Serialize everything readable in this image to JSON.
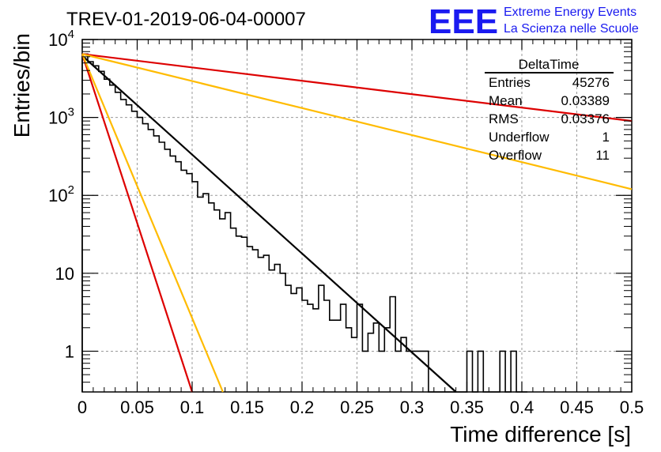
{
  "title": "TREV-01-2019-06-04-00007",
  "brand": {
    "logo_text": "EEE",
    "line1": "Extreme Energy Events",
    "line2": "La Scienza nelle Scuole",
    "color": "#1a1af0"
  },
  "stats_box": {
    "name": "DeltaTime",
    "rows": [
      {
        "label": "Entries",
        "value": "45276"
      },
      {
        "label": "Mean",
        "value": "0.03389"
      },
      {
        "label": "RMS",
        "value": "0.03376"
      },
      {
        "label": "Underflow",
        "value": "1"
      },
      {
        "label": "Overflow",
        "value": "11"
      }
    ]
  },
  "chart_data": {
    "type": "line",
    "xlabel": "Time difference [s]",
    "ylabel": "Entries/bin",
    "xlim": [
      0,
      0.5
    ],
    "ylim": [
      0.3,
      10000
    ],
    "yscale": "log",
    "grid": true,
    "x_ticks": [
      0,
      0.05,
      0.1,
      0.15,
      0.2,
      0.25,
      0.3,
      0.35,
      0.4,
      0.45,
      0.5
    ],
    "x_tick_labels": [
      "0",
      "0.05",
      "0.1",
      "0.15",
      "0.2",
      "0.25",
      "0.3",
      "0.35",
      "0.4",
      "0.45",
      "0.5"
    ],
    "y_ticks": [
      {
        "value": 1,
        "base": "1",
        "exp": ""
      },
      {
        "value": 10,
        "base": "10",
        "exp": ""
      },
      {
        "value": 100,
        "base": "10",
        "exp": "2"
      },
      {
        "value": 1000,
        "base": "10",
        "exp": "3"
      },
      {
        "value": 10000,
        "base": "10",
        "exp": "4"
      }
    ],
    "histogram": {
      "color": "#000000",
      "x": [
        0.0,
        0.005,
        0.01,
        0.015,
        0.02,
        0.025,
        0.03,
        0.035,
        0.04,
        0.045,
        0.05,
        0.055,
        0.06,
        0.065,
        0.07,
        0.075,
        0.08,
        0.085,
        0.09,
        0.095,
        0.1,
        0.105,
        0.11,
        0.115,
        0.12,
        0.125,
        0.13,
        0.135,
        0.14,
        0.145,
        0.15,
        0.155,
        0.16,
        0.165,
        0.17,
        0.175,
        0.18,
        0.185,
        0.19,
        0.195,
        0.2,
        0.205,
        0.21,
        0.215,
        0.22,
        0.225,
        0.23,
        0.235,
        0.24,
        0.245,
        0.25,
        0.255,
        0.26,
        0.265,
        0.27,
        0.275,
        0.28,
        0.285,
        0.29,
        0.295,
        0.3,
        0.305,
        0.31,
        0.315,
        0.32,
        0.325,
        0.33,
        0.335,
        0.34,
        0.345,
        0.35,
        0.355,
        0.36,
        0.365,
        0.37,
        0.375,
        0.38,
        0.385,
        0.39,
        0.395,
        0.4
      ],
      "y": [
        6500,
        5200,
        4600,
        3900,
        3100,
        2600,
        2100,
        1700,
        1450,
        1200,
        1000,
        830,
        700,
        580,
        480,
        390,
        320,
        270,
        210,
        190,
        150,
        95,
        105,
        80,
        65,
        50,
        60,
        38,
        30,
        29,
        22,
        20,
        16,
        17,
        11,
        13,
        10,
        7,
        5.5,
        6.5,
        4.5,
        4,
        3.5,
        7,
        4.5,
        2.5,
        2.5,
        4,
        2,
        1.5,
        4,
        1,
        1.7,
        2.3,
        1,
        2,
        5,
        1,
        1.5,
        1,
        1,
        1,
        1,
        0,
        0,
        0,
        0,
        0,
        0,
        0,
        1,
        0,
        1,
        0,
        0,
        0,
        1,
        0,
        1,
        0,
        0
      ]
    },
    "series": [
      {
        "color": "#000000",
        "x": [
          0,
          0.34
        ],
        "y": [
          6200,
          0.3
        ]
      },
      {
        "color": "#dd0000",
        "x": [
          0,
          0.1
        ],
        "y": [
          6500,
          0.3
        ]
      },
      {
        "color": "#ffbb00",
        "x": [
          0,
          0.128
        ],
        "y": [
          6500,
          0.3
        ]
      },
      {
        "color": "#dd0000",
        "x": [
          0,
          0.5
        ],
        "y": [
          6500,
          900
        ]
      },
      {
        "color": "#ffbb00",
        "x": [
          0,
          0.5
        ],
        "y": [
          6500,
          120
        ]
      }
    ]
  }
}
